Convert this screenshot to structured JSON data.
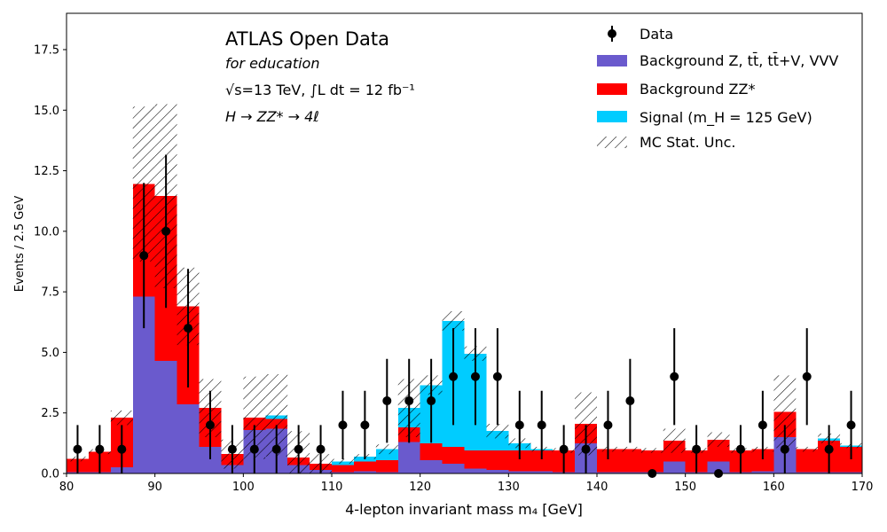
{
  "chart_data": {
    "type": "bar",
    "stacked": true,
    "bin_edges": [
      80,
      82.5,
      85,
      87.5,
      90,
      92.5,
      95,
      97.5,
      100,
      102.5,
      105,
      107.5,
      110,
      112.5,
      115,
      117.5,
      120,
      122.5,
      125,
      127.5,
      130,
      132.5,
      135,
      137.5,
      140,
      142.5,
      145,
      147.5,
      150,
      152.5,
      155,
      157.5,
      160,
      162.5,
      165,
      167.5,
      170
    ],
    "xlabel": "4-lepton invariant mass m₄ [GeV]",
    "ylabel": "Events / 2.5 GeV",
    "xlim": [
      80,
      170
    ],
    "ylim": [
      0,
      19
    ],
    "xticks": [
      80,
      90,
      100,
      110,
      120,
      130,
      140,
      150,
      160,
      170
    ],
    "yticks": [
      0.0,
      2.5,
      5.0,
      7.5,
      10.0,
      12.5,
      15.0,
      17.5
    ],
    "xtick_labels": [
      "80",
      "90",
      "100",
      "110",
      "120",
      "130",
      "140",
      "150",
      "160",
      "170"
    ],
    "ytick_labels": [
      "0.0",
      "2.5",
      "5.0",
      "7.5",
      "10.0",
      "12.5",
      "15.0",
      "17.5"
    ],
    "grid": false,
    "legend_position": "top-right",
    "series": [
      {
        "name": "Background Z, tt̄, tt̄+V, VVV",
        "color": "#6A5ACD",
        "values": [
          0.05,
          0.05,
          0.25,
          7.3,
          4.65,
          2.85,
          1.1,
          0.35,
          1.8,
          1.85,
          0.35,
          0.15,
          0.05,
          0.1,
          0.05,
          1.3,
          0.55,
          0.4,
          0.2,
          0.15,
          0.1,
          0.1,
          0.05,
          1.25,
          0.05,
          0.05,
          0.05,
          0.5,
          0.05,
          0.5,
          0.05,
          0.1,
          1.5,
          0.05,
          0.05,
          0.05
        ]
      },
      {
        "name": "Background ZZ*",
        "color": "#FF0000",
        "values": [
          0.55,
          0.85,
          2.05,
          4.65,
          6.8,
          4.05,
          1.6,
          0.45,
          0.5,
          0.4,
          0.3,
          0.25,
          0.3,
          0.4,
          0.5,
          0.6,
          0.7,
          0.7,
          0.75,
          0.8,
          0.85,
          0.85,
          0.9,
          0.8,
          0.95,
          0.95,
          0.9,
          0.85,
          0.9,
          0.9,
          0.9,
          0.9,
          1.05,
          0.95,
          1.3,
          1.05
        ]
      },
      {
        "name": "Signal (m_H = 125 GeV)",
        "color": "#00CCFF",
        "values": [
          0,
          0,
          0,
          0,
          0,
          0,
          0,
          0,
          0,
          0.15,
          0,
          0,
          0.15,
          0.2,
          0.45,
          0.8,
          2.4,
          5.2,
          4.0,
          0.8,
          0.3,
          0.05,
          0,
          0,
          0,
          0,
          0,
          0,
          0,
          0,
          0,
          0,
          0,
          0,
          0.1,
          0.05
        ]
      }
    ],
    "mc_stat_unc": [
      0.1,
      0.1,
      0.3,
      3.2,
      3.8,
      1.6,
      1.2,
      0.6,
      1.7,
      1.7,
      1.1,
      0.4,
      0.1,
      0.1,
      0.2,
      1.2,
      0.4,
      0.4,
      0.3,
      0.3,
      0.2,
      0.1,
      0.1,
      1.3,
      0.1,
      0.1,
      0.1,
      0.5,
      0.1,
      0.3,
      0.1,
      0.1,
      1.5,
      0.1,
      0.2,
      0.1
    ],
    "data": {
      "name": "Data",
      "color": "#000000",
      "x": [
        81.25,
        83.75,
        86.25,
        88.75,
        91.25,
        93.75,
        96.25,
        98.75,
        101.25,
        103.75,
        106.25,
        108.75,
        111.25,
        113.75,
        116.25,
        118.75,
        121.25,
        123.75,
        126.25,
        128.75,
        131.25,
        133.75,
        136.25,
        138.75,
        141.25,
        143.75,
        146.25,
        148.75,
        151.25,
        153.75,
        156.25,
        158.75,
        161.25,
        163.75,
        166.25,
        168.75
      ],
      "y": [
        1,
        1,
        1,
        9,
        10,
        6,
        2,
        1,
        1,
        1,
        1,
        1,
        2,
        2,
        3,
        3,
        3,
        4,
        4,
        4,
        2,
        2,
        1,
        1,
        2,
        3,
        0,
        4,
        1,
        0,
        1,
        2,
        1,
        4,
        1,
        2
      ]
    },
    "legend": [
      {
        "label": "Data",
        "kind": "data"
      },
      {
        "label": "Background Z, tt̄, tt̄+V, VVV",
        "kind": "fill",
        "color": "#6A5ACD"
      },
      {
        "label": "Background ZZ*",
        "kind": "fill",
        "color": "#FF0000"
      },
      {
        "label": "Signal (m_H = 125 GeV)",
        "kind": "fill",
        "color": "#00CCFF"
      },
      {
        "label": "MC Stat. Unc.",
        "kind": "hatch"
      }
    ],
    "annotations": {
      "title": "ATLAS Open Data",
      "subtitle": "for education",
      "energy": "√s=13 TeV, ∫L dt = 12 fb⁻¹",
      "process": "H → ZZ* → 4ℓ"
    }
  }
}
